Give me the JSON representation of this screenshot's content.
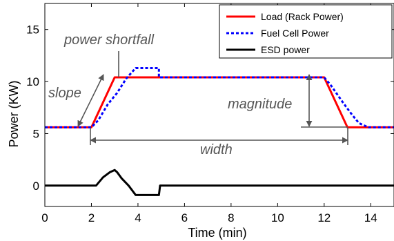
{
  "chart_data": {
    "type": "line",
    "xlabel": "Time (min)",
    "ylabel": "Power (KW)",
    "xlim": [
      0,
      15
    ],
    "ylim": [
      -2,
      17.5
    ],
    "x_ticks": [
      0,
      2,
      4,
      6,
      8,
      10,
      12,
      14
    ],
    "y_ticks": [
      0,
      5,
      10,
      15
    ],
    "grid": false,
    "legend_position": "top-right",
    "series": [
      {
        "name": "Load (Rack Power)",
        "color": "#ff0000",
        "style": "solid",
        "points": [
          [
            0,
            5.6
          ],
          [
            2,
            5.6
          ],
          [
            3,
            10.4
          ],
          [
            12,
            10.4
          ],
          [
            13,
            5.6
          ],
          [
            15,
            5.6
          ]
        ]
      },
      {
        "name": "Fuel Cell Power",
        "color": "#0000ff",
        "style": "dotted",
        "points": [
          [
            0,
            5.6
          ],
          [
            2.0,
            5.6
          ],
          [
            2.3,
            6.3
          ],
          [
            2.7,
            7.8
          ],
          [
            3.1,
            8.9
          ],
          [
            3.5,
            10.3
          ],
          [
            3.9,
            11.3
          ],
          [
            4.9,
            11.3
          ],
          [
            4.9,
            10.4
          ],
          [
            12.0,
            10.4
          ],
          [
            12.3,
            9.6
          ],
          [
            12.8,
            8.0
          ],
          [
            13.2,
            6.8
          ],
          [
            13.5,
            6.0
          ],
          [
            13.9,
            5.6
          ],
          [
            15,
            5.6
          ]
        ]
      },
      {
        "name": "ESD power",
        "color": "#000000",
        "style": "solid",
        "points": [
          [
            0,
            0
          ],
          [
            2.2,
            0
          ],
          [
            2.5,
            0.8
          ],
          [
            2.8,
            1.3
          ],
          [
            3.0,
            1.5
          ],
          [
            3.1,
            1.3
          ],
          [
            3.3,
            0.7
          ],
          [
            3.6,
            0
          ],
          [
            3.9,
            -0.9
          ],
          [
            4.9,
            -0.9
          ],
          [
            4.95,
            0
          ],
          [
            15,
            0
          ]
        ]
      }
    ],
    "annotations": {
      "power_shortfall": "power shortfall",
      "slope": "slope",
      "magnitude": "magnitude",
      "width": "width"
    }
  }
}
